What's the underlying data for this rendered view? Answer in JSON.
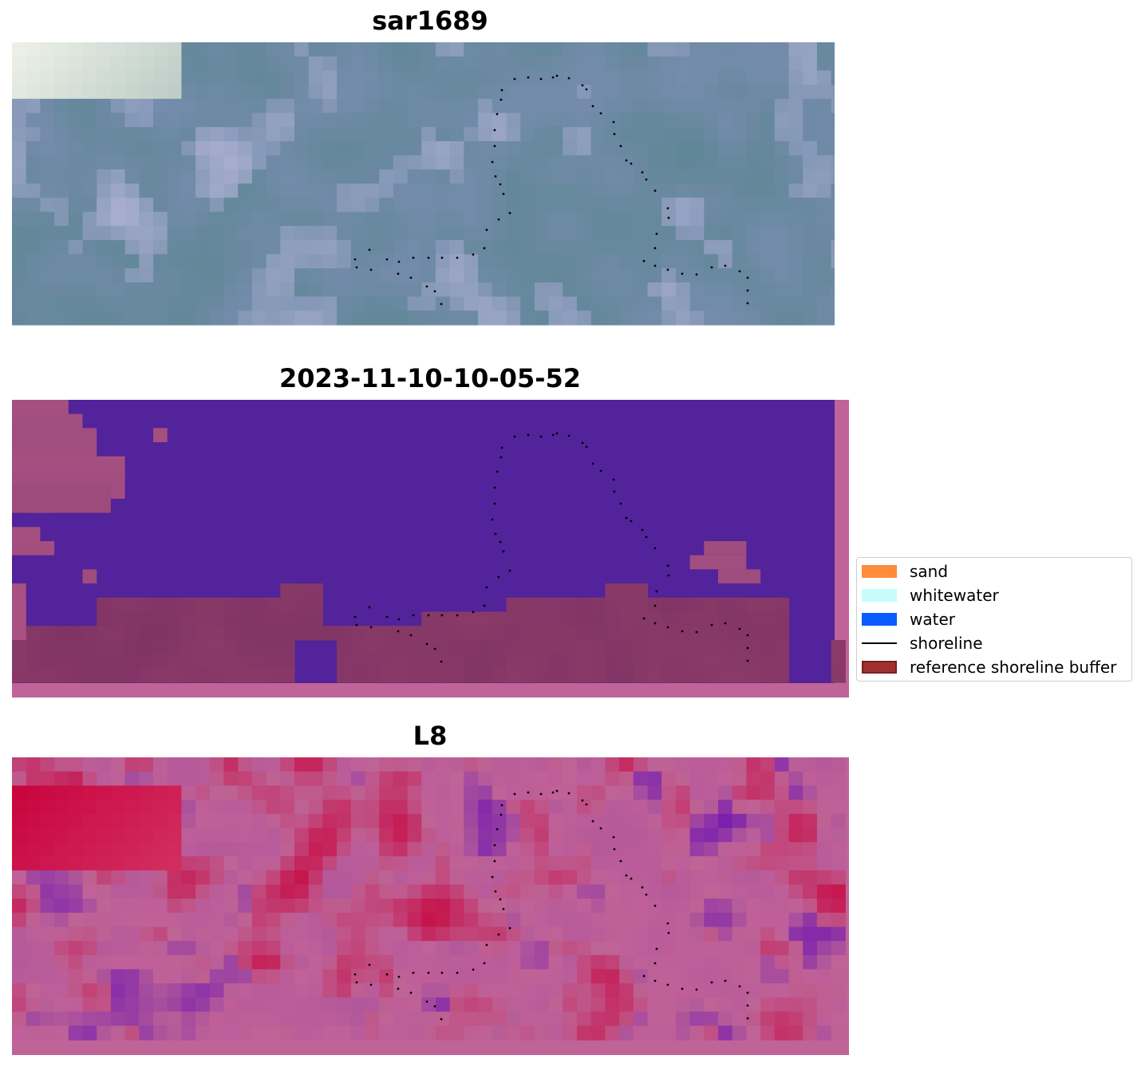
{
  "panels": [
    {
      "title": "sar1689",
      "theme": "rgb"
    },
    {
      "title": "2023-11-10-10-05-52",
      "theme": "class"
    },
    {
      "title": "L8",
      "theme": "index"
    }
  ],
  "legend": [
    {
      "label": "sand",
      "color": "#ff8c3a",
      "kind": "patch"
    },
    {
      "label": "whitewater",
      "color": "#c8fcfc",
      "kind": "patch"
    },
    {
      "label": "water",
      "color": "#0a5cff",
      "kind": "patch"
    },
    {
      "label": "shoreline",
      "color": "#000000",
      "kind": "line"
    },
    {
      "label": "reference shoreline buffer",
      "color": "#a03030",
      "kind": "patch"
    }
  ],
  "colors": {
    "class_water": "#52239a",
    "class_buffer": "#8b3a6a",
    "class_frame": "#bf6398",
    "index_high": "#c8003a",
    "index_low": "#5a00b8",
    "shoreline_dots": "#000000"
  }
}
